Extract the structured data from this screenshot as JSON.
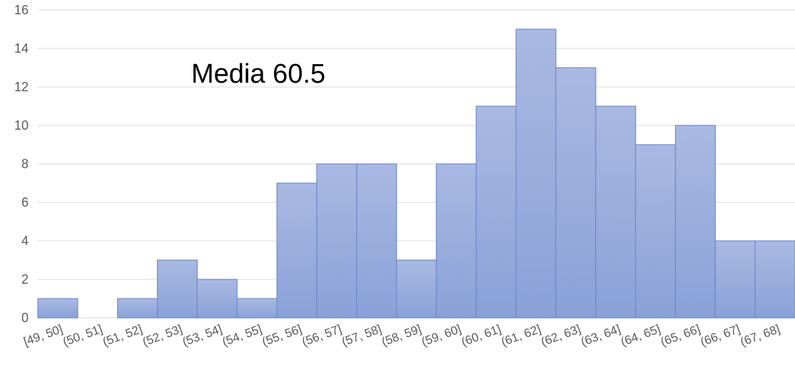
{
  "chart_data": {
    "type": "bar",
    "categories": [
      "[49, 50]",
      "(50, 51]",
      "(51, 52]",
      "(52, 53]",
      "(53, 54]",
      "(54, 55]",
      "(55, 56]",
      "(56, 57]",
      "(57, 58]",
      "(58, 59]",
      "(59, 60]",
      "(60, 61]",
      "(61, 62]",
      "(62, 63]",
      "(63, 64]",
      "(64, 65]",
      "(65, 66]",
      "(66, 67]",
      "(67, 68]"
    ],
    "values": [
      1,
      0,
      1,
      3,
      2,
      1,
      7,
      8,
      8,
      3,
      8,
      11,
      15,
      13,
      11,
      9,
      10,
      4,
      4
    ],
    "ylim": [
      0,
      16
    ],
    "yticks": [
      0,
      2,
      4,
      6,
      8,
      10,
      12,
      14,
      16
    ],
    "grid": true,
    "annotation": "Media 60.5",
    "colors": {
      "bar_top": "#a9b9e2",
      "bar_bottom": "#8aa1d8",
      "bar_edge": "#6f8acb",
      "grid": "#d9d9d9"
    }
  }
}
